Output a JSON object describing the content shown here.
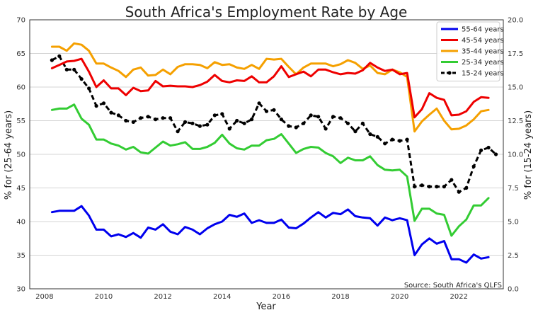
{
  "chart_data": {
    "type": "line",
    "title": "South Africa's Employment Rate by Age",
    "xlabel": "Year",
    "ylabel_left": "% for (25-64 years)",
    "ylabel_right": "% for (15-24 years)",
    "source": "Source: South Africa's QLFS",
    "xlim": [
      2007.5,
      2023.5
    ],
    "ylim_left": [
      30,
      70
    ],
    "ylim_right": [
      0,
      20
    ],
    "x_ticks": [
      2008,
      2010,
      2012,
      2014,
      2016,
      2018,
      2020,
      2022
    ],
    "x_tick_labels": [
      "2008",
      "2010",
      "2012",
      "2014",
      "2016",
      "2018",
      "2020",
      "2022"
    ],
    "y_ticks_left": [
      30,
      35,
      40,
      45,
      50,
      55,
      60,
      65,
      70
    ],
    "y_tick_labels_left": [
      "30",
      "35",
      "40",
      "45",
      "50",
      "55",
      "60",
      "65",
      "70"
    ],
    "y_ticks_right": [
      0,
      2.5,
      5,
      7.5,
      10,
      12.5,
      15,
      17.5,
      20
    ],
    "y_tick_labels_right": [
      "0.0",
      "2.5",
      "5.0",
      "7.5",
      "10.0",
      "12.5",
      "15.0",
      "17.5",
      "20.0"
    ],
    "grid": "horizontal",
    "legend_position": "top-right",
    "x_start": 2008.25,
    "x_step": 0.25,
    "series": [
      {
        "name": "55-64 years",
        "color": "#0000ee",
        "axis": "left",
        "style": "solid",
        "values": [
          41.4,
          41.6,
          41.6,
          41.6,
          42.3,
          40.9,
          38.8,
          38.8,
          37.8,
          38.1,
          37.7,
          38.3,
          37.6,
          39.1,
          38.8,
          39.6,
          38.5,
          38.1,
          39.2,
          38.8,
          38.1,
          39.0,
          39.6,
          40.0,
          41.0,
          40.7,
          41.2,
          39.8,
          40.2,
          39.8,
          39.8,
          40.3,
          39.1,
          39.0,
          39.7,
          40.6,
          41.4,
          40.6,
          41.3,
          41.1,
          41.8,
          40.8,
          40.6,
          40.5,
          39.4,
          40.6,
          40.2,
          40.5,
          40.2,
          35.0,
          36.6,
          37.5,
          36.7,
          37.1,
          34.4,
          34.4,
          33.9,
          35.1,
          34.5,
          34.7
        ]
      },
      {
        "name": "45-54 years",
        "color": "#ee0000",
        "axis": "left",
        "style": "solid",
        "values": [
          62.8,
          63.3,
          63.8,
          63.9,
          64.2,
          62.3,
          60.0,
          61.0,
          59.8,
          59.8,
          58.8,
          59.9,
          59.4,
          59.5,
          60.9,
          60.1,
          60.2,
          60.1,
          60.1,
          60.0,
          60.3,
          60.8,
          61.8,
          60.9,
          60.7,
          61.0,
          60.9,
          61.6,
          60.7,
          60.7,
          61.6,
          63.1,
          61.5,
          61.9,
          62.3,
          61.6,
          62.6,
          62.6,
          62.2,
          61.9,
          62.1,
          62.0,
          62.5,
          63.6,
          62.9,
          62.4,
          62.6,
          61.9,
          62.1,
          55.5,
          56.7,
          59.1,
          58.4,
          58.1,
          55.8,
          55.9,
          56.4,
          57.8,
          58.5,
          58.4
        ]
      },
      {
        "name": "35-44 years",
        "color": "#f5a000",
        "axis": "left",
        "style": "solid",
        "values": [
          66.0,
          66.0,
          65.4,
          66.5,
          66.3,
          65.4,
          63.5,
          63.5,
          62.9,
          62.4,
          61.5,
          62.6,
          62.9,
          61.7,
          61.8,
          62.6,
          61.9,
          63.0,
          63.4,
          63.4,
          63.3,
          62.8,
          63.7,
          63.3,
          63.4,
          62.9,
          62.7,
          63.3,
          62.7,
          64.2,
          64.1,
          64.2,
          63.0,
          61.9,
          62.9,
          63.5,
          63.5,
          63.5,
          63.1,
          63.4,
          64.0,
          63.6,
          62.7,
          63.2,
          62.1,
          61.9,
          62.6,
          62.2,
          61.5,
          53.4,
          54.9,
          55.9,
          56.8,
          55.0,
          53.7,
          53.8,
          54.3,
          55.2,
          56.4,
          56.6
        ]
      },
      {
        "name": "25-34 years",
        "color": "#33cc33",
        "axis": "left",
        "style": "solid",
        "values": [
          56.6,
          56.8,
          56.8,
          57.4,
          55.3,
          54.4,
          52.2,
          52.2,
          51.6,
          51.3,
          50.7,
          51.1,
          50.3,
          50.1,
          51.0,
          51.9,
          51.3,
          51.5,
          51.8,
          50.8,
          50.8,
          51.1,
          51.7,
          52.9,
          51.6,
          50.9,
          50.7,
          51.3,
          51.3,
          52.1,
          52.3,
          53.0,
          51.6,
          50.2,
          50.8,
          51.1,
          51.0,
          50.2,
          49.7,
          48.7,
          49.5,
          49.1,
          49.1,
          49.7,
          48.4,
          47.7,
          47.6,
          47.7,
          46.7,
          40.1,
          41.9,
          41.9,
          41.2,
          41.0,
          37.9,
          39.3,
          40.3,
          42.4,
          42.4,
          43.5
        ]
      },
      {
        "name": "15-24 years",
        "color": "#000000",
        "axis": "right",
        "style": "dashed",
        "values": [
          17.0,
          17.3,
          16.3,
          16.3,
          15.6,
          14.9,
          13.6,
          13.8,
          13.1,
          12.9,
          12.5,
          12.4,
          12.7,
          12.8,
          12.6,
          12.7,
          12.7,
          11.7,
          12.4,
          12.3,
          12.1,
          12.2,
          12.9,
          13.0,
          11.9,
          12.5,
          12.3,
          12.6,
          13.8,
          13.2,
          13.3,
          12.6,
          12.1,
          12.0,
          12.3,
          12.9,
          12.8,
          11.9,
          12.8,
          12.7,
          12.3,
          11.7,
          12.3,
          11.5,
          11.3,
          10.8,
          11.1,
          11.0,
          11.1,
          7.6,
          7.7,
          7.6,
          7.6,
          7.6,
          8.1,
          7.2,
          7.5,
          9.1,
          10.3,
          10.5,
          10.0
        ]
      }
    ]
  }
}
